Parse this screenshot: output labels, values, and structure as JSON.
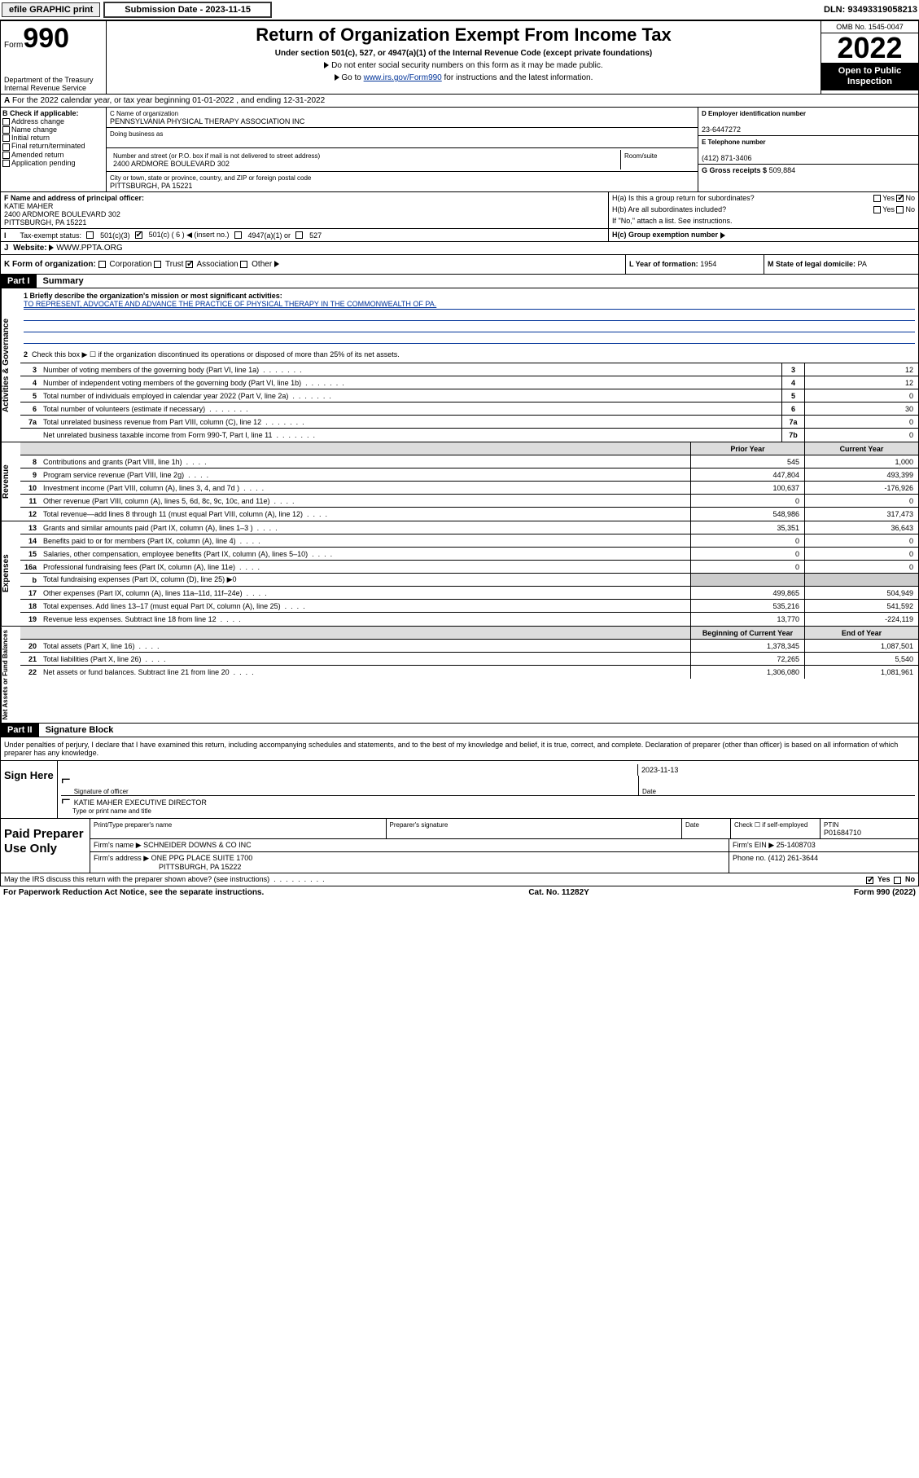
{
  "top": {
    "efile": "efile GRAPHIC print",
    "sub_lbl": "Submission Date - 2023-11-15",
    "dln": "DLN: 93493319058213"
  },
  "hdr": {
    "form_word": "Form",
    "form_num": "990",
    "dept": "Department of the Treasury\nInternal Revenue Service",
    "title": "Return of Organization Exempt From Income Tax",
    "sub1": "Under section 501(c), 527, or 4947(a)(1) of the Internal Revenue Code (except private foundations)",
    "sub2": "Do not enter social security numbers on this form as it may be made public.",
    "sub3_pre": "Go to ",
    "sub3_link": "www.irs.gov/Form990",
    "sub3_post": " for instructions and the latest information.",
    "omb": "OMB No. 1545-0047",
    "year": "2022",
    "insp": "Open to Public Inspection"
  },
  "A": {
    "text": "For the 2022 calendar year, or tax year beginning 01-01-2022 , and ending 12-31-2022"
  },
  "B": {
    "label": "B Check if applicable:",
    "items": [
      "Address change",
      "Name change",
      "Initial return",
      "Final return/terminated",
      "Amended return",
      "Application pending"
    ]
  },
  "C": {
    "name_lbl": "C Name of organization",
    "name": "PENNSYLVANIA PHYSICAL THERAPY ASSOCIATION INC",
    "dba_lbl": "Doing business as",
    "addr_lbl": "Number and street (or P.O. box if mail is not delivered to street address)",
    "room_lbl": "Room/suite",
    "addr": "2400 ARDMORE BOULEVARD 302",
    "city_lbl": "City or town, state or province, country, and ZIP or foreign postal code",
    "city": "PITTSBURGH, PA  15221"
  },
  "D": {
    "lbl": "D Employer identification number",
    "val": "23-6447272"
  },
  "E": {
    "lbl": "E Telephone number",
    "val": "(412) 871-3406"
  },
  "G": {
    "lbl": "G Gross receipts $",
    "val": "509,884"
  },
  "F": {
    "lbl": "F  Name and address of principal officer:",
    "name": "KATIE MAHER",
    "addr": "2400 ARDMORE BOULEVARD 302",
    "city": "PITTSBURGH, PA  15221"
  },
  "H": {
    "a": "H(a)  Is this a group return for subordinates?",
    "b": "H(b)  Are all subordinates included?",
    "b2": "If \"No,\" attach a list. See instructions.",
    "c": "H(c)  Group exemption number",
    "yes": "Yes",
    "no": "No"
  },
  "I": {
    "lbl": "Tax-exempt status:",
    "opts": [
      "501(c)(3)",
      "501(c) ( 6 ) ◀ (insert no.)",
      "4947(a)(1) or",
      "527"
    ]
  },
  "J": {
    "lbl": "Website:",
    "val": "WWW.PPTA.ORG"
  },
  "K": {
    "lbl": "K Form of organization:",
    "opts": [
      "Corporation",
      "Trust",
      "Association",
      "Other"
    ]
  },
  "L": {
    "lbl": "L Year of formation:",
    "val": "1954"
  },
  "M": {
    "lbl": "M State of legal domicile:",
    "val": "PA"
  },
  "part1": {
    "hdr": "Part I",
    "title": "Summary"
  },
  "mission": {
    "lbl": "1  Briefly describe the organization's mission or most significant activities:",
    "val": "TO REPRESENT, ADVOCATE AND ADVANCE THE PRACTICE OF PHYSICAL THERAPY IN THE COMMONWEALTH OF PA."
  },
  "q2": "Check this box ▶ ☐  if the organization discontinued its operations or disposed of more than 25% of its net assets.",
  "side": {
    "ag": "Activities & Governance",
    "rev": "Revenue",
    "exp": "Expenses",
    "na": "Net Assets or Fund Balances"
  },
  "ag_rows": [
    {
      "n": "3",
      "d": "Number of voting members of the governing body (Part VI, line 1a)",
      "box": "3",
      "v": "12"
    },
    {
      "n": "4",
      "d": "Number of independent voting members of the governing body (Part VI, line 1b)",
      "box": "4",
      "v": "12"
    },
    {
      "n": "5",
      "d": "Total number of individuals employed in calendar year 2022 (Part V, line 2a)",
      "box": "5",
      "v": "0"
    },
    {
      "n": "6",
      "d": "Total number of volunteers (estimate if necessary)",
      "box": "6",
      "v": "30"
    },
    {
      "n": "7a",
      "d": "Total unrelated business revenue from Part VIII, column (C), line 12",
      "box": "7a",
      "v": "0"
    },
    {
      "n": "",
      "d": "Net unrelated business taxable income from Form 990-T, Part I, line 11",
      "box": "7b",
      "v": "0"
    }
  ],
  "cols": {
    "prior": "Prior Year",
    "curr": "Current Year",
    "boy": "Beginning of Current Year",
    "eoy": "End of Year"
  },
  "rev_rows": [
    {
      "n": "8",
      "d": "Contributions and grants (Part VIII, line 1h)",
      "p": "545",
      "c": "1,000"
    },
    {
      "n": "9",
      "d": "Program service revenue (Part VIII, line 2g)",
      "p": "447,804",
      "c": "493,399"
    },
    {
      "n": "10",
      "d": "Investment income (Part VIII, column (A), lines 3, 4, and 7d )",
      "p": "100,637",
      "c": "-176,926"
    },
    {
      "n": "11",
      "d": "Other revenue (Part VIII, column (A), lines 5, 6d, 8c, 9c, 10c, and 11e)",
      "p": "0",
      "c": "0"
    },
    {
      "n": "12",
      "d": "Total revenue—add lines 8 through 11 (must equal Part VIII, column (A), line 12)",
      "p": "548,986",
      "c": "317,473"
    }
  ],
  "exp_rows": [
    {
      "n": "13",
      "d": "Grants and similar amounts paid (Part IX, column (A), lines 1–3 )",
      "p": "35,351",
      "c": "36,643"
    },
    {
      "n": "14",
      "d": "Benefits paid to or for members (Part IX, column (A), line 4)",
      "p": "0",
      "c": "0"
    },
    {
      "n": "15",
      "d": "Salaries, other compensation, employee benefits (Part IX, column (A), lines 5–10)",
      "p": "0",
      "c": "0"
    },
    {
      "n": "16a",
      "d": "Professional fundraising fees (Part IX, column (A), line 11e)",
      "p": "0",
      "c": "0"
    },
    {
      "n": "b",
      "d": "Total fundraising expenses (Part IX, column (D), line 25) ▶0",
      "p": "",
      "c": "",
      "grey": true
    },
    {
      "n": "17",
      "d": "Other expenses (Part IX, column (A), lines 11a–11d, 11f–24e)",
      "p": "499,865",
      "c": "504,949"
    },
    {
      "n": "18",
      "d": "Total expenses. Add lines 13–17 (must equal Part IX, column (A), line 25)",
      "p": "535,216",
      "c": "541,592"
    },
    {
      "n": "19",
      "d": "Revenue less expenses. Subtract line 18 from line 12",
      "p": "13,770",
      "c": "-224,119"
    }
  ],
  "na_rows": [
    {
      "n": "20",
      "d": "Total assets (Part X, line 16)",
      "p": "1,378,345",
      "c": "1,087,501"
    },
    {
      "n": "21",
      "d": "Total liabilities (Part X, line 26)",
      "p": "72,265",
      "c": "5,540"
    },
    {
      "n": "22",
      "d": "Net assets or fund balances. Subtract line 21 from line 20",
      "p": "1,306,080",
      "c": "1,081,961"
    }
  ],
  "part2": {
    "hdr": "Part II",
    "title": "Signature Block"
  },
  "sig_intro": "Under penalties of perjury, I declare that I have examined this return, including accompanying schedules and statements, and to the best of my knowledge and belief, it is true, correct, and complete. Declaration of preparer (other than officer) is based on all information of which preparer has any knowledge.",
  "sign": {
    "here": "Sign Here",
    "sig_lbl": "Signature of officer",
    "date_lbl": "Date",
    "date": "2023-11-13",
    "name": "KATIE MAHER  EXECUTIVE DIRECTOR",
    "name_lbl": "Type or print name and title"
  },
  "prep": {
    "lbl": "Paid Preparer Use Only",
    "h1": "Print/Type preparer's name",
    "h2": "Preparer's signature",
    "h3": "Date",
    "h4_a": "Check ☐ if self-employed",
    "h4_b": "PTIN",
    "ptin": "P01684710",
    "firm_lbl": "Firm's name  ▶",
    "firm": "SCHNEIDER DOWNS & CO INC",
    "ein_lbl": "Firm's EIN ▶",
    "ein": "25-1408703",
    "addr_lbl": "Firm's address ▶",
    "addr": "ONE PPG PLACE SUITE 1700",
    "city": "PITTSBURGH, PA  15222",
    "phone_lbl": "Phone no.",
    "phone": "(412) 261-3644"
  },
  "foot": {
    "q": "May the IRS discuss this return with the preparer shown above? (see instructions)",
    "yes": "Yes",
    "no": "No",
    "pra": "For Paperwork Reduction Act Notice, see the separate instructions.",
    "cat": "Cat. No. 11282Y",
    "form": "Form 990 (2022)"
  }
}
